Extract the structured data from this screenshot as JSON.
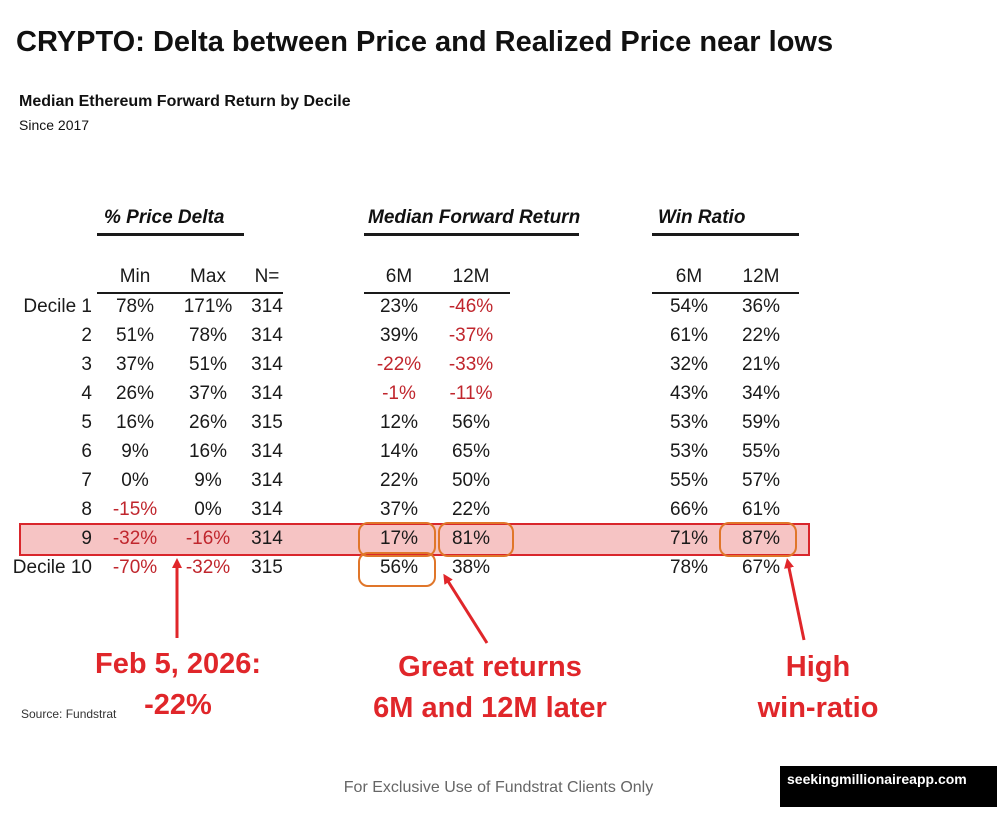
{
  "title": "CRYPTO: Delta between Price and Realized Price near lows",
  "subtitle": "Median Ethereum Forward Return by Decile",
  "since": "Since 2017",
  "group_headers": {
    "price_delta": "% Price Delta",
    "median_forward_return": "Median Forward Return",
    "win_ratio": "Win Ratio"
  },
  "col_headers": {
    "min": "Min",
    "max": "Max",
    "n": "N=",
    "ret_6m": "6M",
    "ret_12m": "12M",
    "win_6m": "6M",
    "win_12m": "12M"
  },
  "colors": {
    "negative": "#c0262d",
    "highlight_fill": "#f6c4c4",
    "highlight_border": "#d9262c",
    "oval": "#e0762a",
    "annotation": "#e0262a"
  },
  "chart_data": {
    "type": "table",
    "columns": [
      "Decile",
      "Min",
      "Max",
      "N=",
      "6M Median Forward Return",
      "12M Median Forward Return",
      "6M Win Ratio",
      "12M Win Ratio"
    ],
    "rows": [
      {
        "label": "Decile 1",
        "min": "78%",
        "max": "171%",
        "n": "314",
        "ret_6m": "23%",
        "ret_12m": "-46%",
        "win_6m": "54%",
        "win_12m": "36%"
      },
      {
        "label": "2",
        "min": "51%",
        "max": "78%",
        "n": "314",
        "ret_6m": "39%",
        "ret_12m": "-37%",
        "win_6m": "61%",
        "win_12m": "22%"
      },
      {
        "label": "3",
        "min": "37%",
        "max": "51%",
        "n": "314",
        "ret_6m": "-22%",
        "ret_12m": "-33%",
        "win_6m": "32%",
        "win_12m": "21%"
      },
      {
        "label": "4",
        "min": "26%",
        "max": "37%",
        "n": "314",
        "ret_6m": "-1%",
        "ret_12m": "-11%",
        "win_6m": "43%",
        "win_12m": "34%"
      },
      {
        "label": "5",
        "min": "16%",
        "max": "26%",
        "n": "315",
        "ret_6m": "12%",
        "ret_12m": "56%",
        "win_6m": "53%",
        "win_12m": "59%"
      },
      {
        "label": "6",
        "min": "9%",
        "max": "16%",
        "n": "314",
        "ret_6m": "14%",
        "ret_12m": "65%",
        "win_6m": "53%",
        "win_12m": "55%"
      },
      {
        "label": "7",
        "min": "0%",
        "max": "9%",
        "n": "314",
        "ret_6m": "22%",
        "ret_12m": "50%",
        "win_6m": "55%",
        "win_12m": "57%"
      },
      {
        "label": "8",
        "min": "-15%",
        "max": "0%",
        "n": "314",
        "ret_6m": "37%",
        "ret_12m": "22%",
        "win_6m": "66%",
        "win_12m": "61%"
      },
      {
        "label": "9",
        "min": "-32%",
        "max": "-16%",
        "n": "314",
        "ret_6m": "17%",
        "ret_12m": "81%",
        "win_6m": "71%",
        "win_12m": "87%"
      },
      {
        "label": "Decile 10",
        "min": "-70%",
        "max": "-32%",
        "n": "315",
        "ret_6m": "56%",
        "ret_12m": "38%",
        "win_6m": "78%",
        "win_12m": "67%"
      }
    ],
    "highlighted_row": "9",
    "circled_cells": [
      "9 / 6M return",
      "9 / 12M return",
      "Decile 10 / 6M return",
      "9 / 12M win ratio"
    ]
  },
  "annotations": {
    "feb": [
      "Feb 5, 2026:",
      "-22%"
    ],
    "returns": [
      "Great returns",
      "6M and 12M later"
    ],
    "winratio": [
      "High",
      "win-ratio"
    ]
  },
  "source": "Source: Fundstrat",
  "footer": "For Exclusive Use of Fundstrat Clients Only",
  "watermark": {
    "logo": "fundstrat",
    "site": "seekingmillionaireapp.com"
  }
}
